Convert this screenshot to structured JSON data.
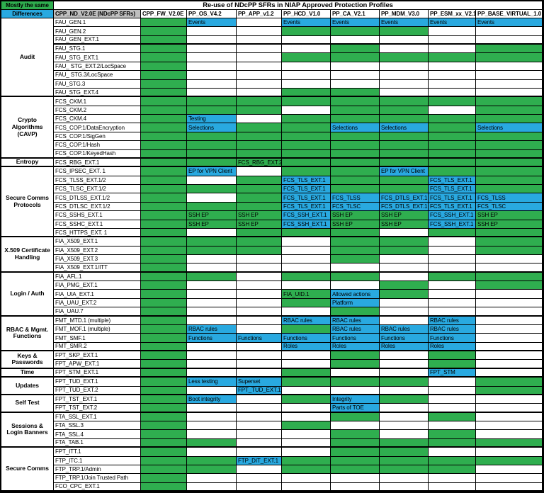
{
  "chart_data": {
    "type": "table",
    "title": "Re-use of NDcPP SFRs in NIAP Approved Protection Profiles",
    "corner_top": "Mostly the same",
    "corner_bottom": "Differences",
    "sfr_column_header": "CPP_ND_V2.0E (NDcPP SFRs)",
    "columns": [
      "CPP_FW_V2.0E",
      "PP_OS_V4.2",
      "PP_APP_v1.2",
      "PP_HCD_V1.0",
      "PP_CA_V2.1",
      "PP_MDM_V3.0",
      "PP_ESM_xx_V2.1",
      "PP_BASE_VIRTUAL_1.0"
    ],
    "colors": {
      "green": "#2fae4f",
      "blue": "#29a9e0",
      "header_gray": "#bfbfbf"
    },
    "cell_encoding": "empty=white, G=green, G|text=green with note, B|text=blue with note; column order follows columns[]",
    "groups": [
      {
        "name": "Audit",
        "rows": [
          {
            "sfr": "FAU_GEN.1",
            "cells": [
              "G",
              "B|Events",
              "",
              "B|Events",
              "B|Events",
              "B|Events",
              "B|Events",
              "B|Events"
            ]
          },
          {
            "sfr": "FAU_GEN.2",
            "cells": [
              "G",
              "",
              "",
              "G",
              "G",
              "G",
              "",
              ""
            ]
          },
          {
            "sfr": "FAU_GEN_EXT.1",
            "sep": true,
            "cells": [
              "G",
              "",
              "",
              "",
              "",
              "",
              "",
              ""
            ]
          },
          {
            "sfr": "FAU_STG.1",
            "cells": [
              "G",
              "",
              "",
              "",
              "G",
              "",
              "",
              "G"
            ]
          },
          {
            "sfr": "FAU_STG_EXT.1",
            "cells": [
              "G",
              "",
              "",
              "G",
              "G",
              "G",
              "G",
              "G"
            ]
          },
          {
            "sfr": "FAU_ STG_EXT.2/LocSpace",
            "cells": [
              "G",
              "",
              "",
              "",
              "",
              "",
              "",
              ""
            ]
          },
          {
            "sfr": "FAU_ STG.3/LocSpace",
            "cells": [
              "G",
              "",
              "",
              "",
              "",
              "",
              "",
              ""
            ]
          },
          {
            "sfr": "FAU_STG.3",
            "cells": [
              "G",
              "",
              "",
              "",
              "",
              "",
              "",
              ""
            ]
          },
          {
            "sfr": "FAU_STG_EXT.4",
            "cells": [
              "G",
              "",
              "",
              "G",
              "G",
              "",
              "",
              ""
            ]
          }
        ]
      },
      {
        "name": "Crypto Algorithms (CAVP)",
        "rows": [
          {
            "sfr": "FCS_CKM.1",
            "cells": [
              "G",
              "G",
              "G",
              "G",
              "G",
              "G",
              "G",
              "G"
            ]
          },
          {
            "sfr": "FCS_CKM.2",
            "cells": [
              "G",
              "G",
              "G",
              "",
              "G",
              "G",
              "",
              "G"
            ]
          },
          {
            "sfr": "FCS_CKM.4",
            "cells": [
              "G",
              "B|Testing",
              "",
              "G",
              "G",
              "G",
              "G",
              "G"
            ]
          },
          {
            "sfr": "FCS_COP.1/DataEncryption",
            "cells": [
              "G",
              "B|Selections",
              "G",
              "G",
              "B|Selections",
              "B|Selections",
              "G",
              "B|Selections"
            ]
          },
          {
            "sfr": "FCS_COP.1/SigGen",
            "cells": [
              "G",
              "G",
              "G",
              "G",
              "G",
              "G",
              "G",
              "G"
            ]
          },
          {
            "sfr": "FCS_COP.1/Hash",
            "cells": [
              "G",
              "G",
              "G",
              "G",
              "G",
              "G",
              "G",
              "G"
            ]
          },
          {
            "sfr": "FCS_COP.1/KeyedHash",
            "cells": [
              "G",
              "G",
              "G",
              "G",
              "G",
              "G",
              "G",
              "G"
            ]
          }
        ]
      },
      {
        "name": "Entropy",
        "rows": [
          {
            "sfr": "FCS_RBG_EXT.1",
            "cells": [
              "G",
              "G",
              "G|FCS_RBG_EXT.2",
              "G",
              "G",
              "G",
              "G",
              "G"
            ]
          }
        ]
      },
      {
        "name": "Secure Comms Protocols",
        "rows": [
          {
            "sfr": "FCS_IPSEC_EXT. 1",
            "cells": [
              "G",
              "B|EP for VPN Client",
              "",
              "G",
              "G",
              "B|EP for VPN Client",
              "G",
              "G"
            ]
          },
          {
            "sfr": "FCS_TLSS_EXT.1/2",
            "cells": [
              "G",
              "",
              "G",
              "B|FCS_TLS_EXT.1",
              "G",
              "G",
              "B|FCS_TLS_EXT.1",
              "G"
            ]
          },
          {
            "sfr": "FCS_TLSC_EXT.1/2",
            "cells": [
              "G",
              "G",
              "G",
              "B|FCS_TLS_EXT.1",
              "G",
              "G",
              "B|FCS_TLS_EXT.1",
              "G"
            ]
          },
          {
            "sfr": "FCS_DTLSS_EXT.1/2",
            "cells": [
              "G",
              "",
              "G",
              "B|FCS_TLS_EXT.1",
              "B|FCS_TLSS",
              "B|FCS_DTLS_EXT.1",
              "B|FCS_TLS_EXT.1",
              "B|FCS_TLSS"
            ]
          },
          {
            "sfr": "FCS_DTLSC_EXT.1/2",
            "cells": [
              "G",
              "G",
              "G",
              "B|FCS_TLS_EXT.1",
              "B|FCS_TLSC",
              "B|FCS_DTLS_EXT.1",
              "B|FCS_TLS_EXT.1",
              "B|FCS_TLSC"
            ]
          },
          {
            "sfr": "FCS_SSHS_EXT.1",
            "cells": [
              "G",
              "G|SSH EP",
              "G|SSH EP",
              "B|FCS_SSH_EXT.1",
              "G|SSH EP",
              "G|SSH EP",
              "B|FCS_SSH_EXT.1",
              "G|SSH EP"
            ]
          },
          {
            "sfr": "FCS_SSHC_EXT.1",
            "cells": [
              "G",
              "G|SSH EP",
              "G|SSH EP",
              "B|FCS_SSH_EXT.1",
              "G|SSH EP",
              "G|SSH EP",
              "B|FCS_SSH_EXT.1",
              "G|SSH EP"
            ]
          },
          {
            "sfr": "FCS_HTTPS_EXT. 1",
            "cells": [
              "G",
              "",
              "G",
              "G",
              "G",
              "",
              "G",
              "G"
            ]
          }
        ]
      },
      {
        "name": "X.509 Certificate Handling",
        "rows": [
          {
            "sfr": "FIA_X509_EXT.1",
            "cells": [
              "G",
              "G",
              "G",
              "",
              "G",
              "G",
              "",
              "G"
            ]
          },
          {
            "sfr": "FIA_X509_EXT.2",
            "cells": [
              "G",
              "G",
              "G",
              "",
              "G",
              "G",
              "",
              "G"
            ]
          },
          {
            "sfr": "FIA_X509_EXT.3",
            "cells": [
              "G",
              "",
              "",
              "",
              "G",
              "",
              "",
              ""
            ]
          },
          {
            "sfr": "FIA_X509_EXT.1/ITT",
            "cells": [
              "G",
              "",
              "",
              "",
              "",
              "",
              "",
              ""
            ]
          }
        ]
      },
      {
        "name": "Login / Auth",
        "rows": [
          {
            "sfr": "FIA_AFL.1",
            "cells": [
              "G",
              "G",
              "",
              "G",
              "G",
              "",
              "G",
              "G"
            ]
          },
          {
            "sfr": "FIA_PMG_EXT.1",
            "cells": [
              "G",
              "",
              "",
              "",
              "",
              "G",
              "",
              "G"
            ]
          },
          {
            "sfr": "FIA_UIA_EXT.1",
            "cells": [
              "G",
              "",
              "",
              "G|FIA_UID.1",
              "B|Allowed actions",
              "G",
              "",
              ""
            ]
          },
          {
            "sfr": "FIA_UAU_EXT.2",
            "cells": [
              "G",
              "",
              "",
              "G",
              "B|Platform",
              "",
              "",
              ""
            ]
          },
          {
            "sfr": "FIA_UAU.7",
            "cells": [
              "G",
              "",
              "",
              "",
              "G",
              "",
              "",
              ""
            ]
          }
        ]
      },
      {
        "name": "RBAC & Mgmt. Functions",
        "rows": [
          {
            "sfr": "FMT_MTD.1 (multiple)",
            "cells": [
              "G",
              "",
              "",
              "B|RBAC rules",
              "B|RBAC rules",
              "",
              "B|RBAC rules",
              ""
            ]
          },
          {
            "sfr": "FMT_MOF.1 (multiple)",
            "cells": [
              "G",
              "B|RBAC rules",
              "",
              "G",
              "B|RBAC rules",
              "B|RBAC rules",
              "B|RBAC rules",
              ""
            ]
          },
          {
            "sfr": "FMT_SMF.1",
            "cells": [
              "G",
              "B|Functions",
              "B|Functions",
              "B|Functions",
              "B|Functions",
              "B|Functions",
              "B|Functions",
              ""
            ]
          },
          {
            "sfr": "FMT_SMR.2",
            "cells": [
              "G",
              "",
              "",
              "B|Roles",
              "B|Roles",
              "B|Roles",
              "B|Roles",
              ""
            ]
          }
        ]
      },
      {
        "name": "Keys & Passwords",
        "rows": [
          {
            "sfr": "FPT_SKP_EXT.1",
            "cells": [
              "G",
              "",
              "",
              "",
              "G",
              "",
              "G",
              ""
            ]
          },
          {
            "sfr": "FPT_APW_EXT.1",
            "cells": [
              "G",
              "",
              "",
              "",
              "G",
              "",
              "G",
              ""
            ]
          }
        ]
      },
      {
        "name": "Time",
        "rows": [
          {
            "sfr": "FPT_STM_EXT.1",
            "cells": [
              "G",
              "",
              "",
              "G",
              "",
              "",
              "B|FPT_STM",
              ""
            ]
          }
        ]
      },
      {
        "name": "Updates",
        "rows": [
          {
            "sfr": "FPT_TUD_EXT.1",
            "cells": [
              "G",
              "B|Less testing",
              "B|Superset",
              "G",
              "G",
              "G",
              "",
              "G"
            ]
          },
          {
            "sfr": "FPT_TUD_EXT.2",
            "cells": [
              "G",
              "",
              "B|FPT_TUD_EXT.1",
              "",
              "",
              "",
              "",
              "G"
            ]
          }
        ]
      },
      {
        "name": "Self Test",
        "rows": [
          {
            "sfr": "FPT_TST_EXT.1",
            "cells": [
              "G",
              "B|Boot integrity",
              "",
              "G",
              "B|Integrity",
              "G",
              "",
              ""
            ]
          },
          {
            "sfr": "FPT_TST_EXT.2",
            "cells": [
              "G",
              "",
              "",
              "",
              "B|Parts of TOE",
              "",
              "",
              ""
            ]
          }
        ]
      },
      {
        "name": "Sessions & Login Banners",
        "rows": [
          {
            "sfr": "FTA_SSL_EXT.1",
            "cells": [
              "G",
              "",
              "",
              "",
              "G",
              "",
              "G",
              ""
            ]
          },
          {
            "sfr": "FTA_SSL.3",
            "cells": [
              "G",
              "",
              "",
              "G",
              "",
              "",
              "",
              ""
            ]
          },
          {
            "sfr": "FTA_SSL.4",
            "cells": [
              "G",
              "",
              "",
              "",
              "G",
              "",
              "G",
              ""
            ]
          },
          {
            "sfr": "FTA_TAB.1",
            "cells": [
              "G",
              "G",
              "",
              "",
              "G",
              "G",
              "G",
              "G"
            ]
          }
        ]
      },
      {
        "name": "Secure Comms",
        "rows": [
          {
            "sfr": "FPT_ITT.1",
            "cells": [
              "G",
              "",
              "",
              "",
              "G",
              "G",
              "",
              ""
            ]
          },
          {
            "sfr": "FTP_ITC.1",
            "cells": [
              "G",
              "G",
              "B|FTP_DIT_EXT.1",
              "G",
              "G",
              "G",
              "G",
              "G"
            ]
          },
          {
            "sfr": "FTP_TRP.1/Admin",
            "cells": [
              "G",
              "G",
              "",
              "G",
              "G",
              "G",
              "G",
              ""
            ]
          },
          {
            "sfr": "FTP_TRP.1/Join Trusted Path",
            "cells": [
              "G",
              "",
              "",
              "",
              "",
              "",
              "",
              ""
            ]
          },
          {
            "sfr": "FCO_CPC_EXT.1",
            "cells": [
              "G",
              "",
              "",
              "",
              "",
              "",
              "",
              ""
            ]
          }
        ]
      }
    ]
  }
}
